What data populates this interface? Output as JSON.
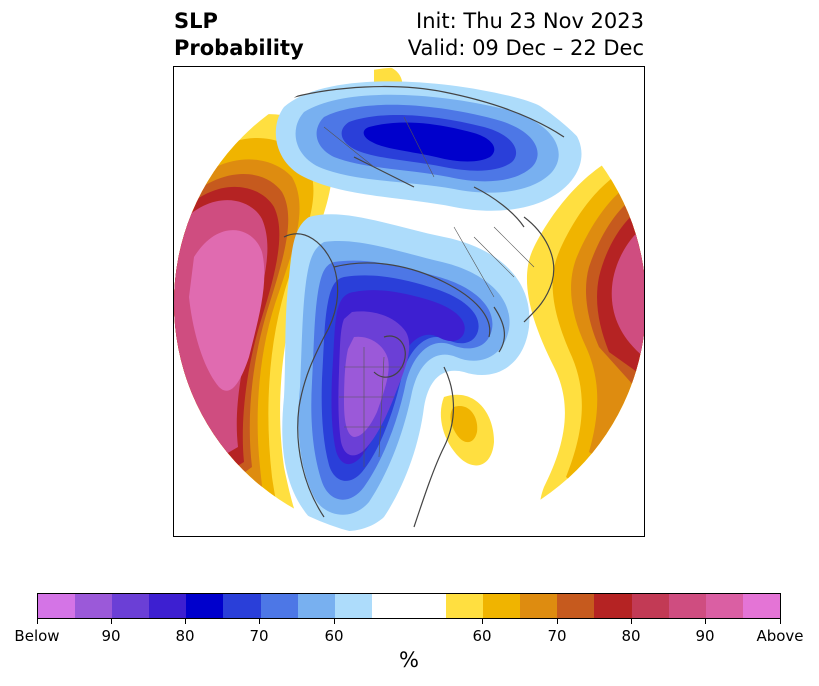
{
  "title": {
    "left_line1": "SLP",
    "left_line2": "Probability",
    "right_line1": "Init: Thu 23 Nov 2023",
    "right_line2": "Valid: 09 Dec – 22 Dec"
  },
  "colors": {
    "below": [
      "#d474e6",
      "#9b59d9",
      "#6b3fd6",
      "#3d1fd1",
      "#0000cc",
      "#2a3fd9",
      "#4d77e6",
      "#78b0f0",
      "#addcfb"
    ],
    "neutral": "#ffffff",
    "above": [
      "#ffdf40",
      "#f0b400",
      "#de8c10",
      "#c65a1e",
      "#b52323",
      "#c23a55",
      "#cf4d80",
      "#da5fa3",
      "#e474d6"
    ]
  },
  "colorbar": {
    "labels": [
      "Below",
      "90",
      "80",
      "70",
      "60",
      "60",
      "70",
      "80",
      "90",
      "Above"
    ],
    "unit": "%"
  }
}
